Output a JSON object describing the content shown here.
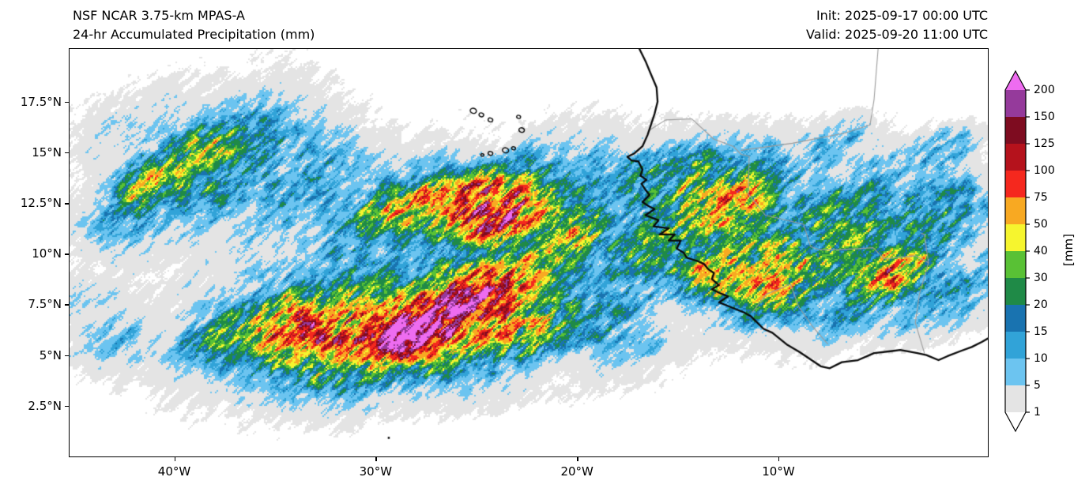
{
  "header": {
    "title_line1": "NSF NCAR 3.75-km MPAS-A",
    "title_line2": "24-hr Accumulated Precipitation (mm)",
    "init_label": "Init: 2025-09-17 00:00 UTC",
    "valid_label": "Valid: 2025-09-20 11:00 UTC"
  },
  "chart_data": {
    "type": "heatmap",
    "title": "24-hr Accumulated Precipitation (mm)",
    "model": "NSF NCAR 3.75-km MPAS-A",
    "init_time": "2025-09-17 00:00 UTC",
    "valid_time": "2025-09-20 11:00 UTC",
    "units": "[mm]",
    "grid": false,
    "extent": {
      "lon_min": -45.2,
      "lon_max": 0.4,
      "lat_min": 0.0,
      "lat_max": 20.1
    },
    "xticks": [
      {
        "lon": -40,
        "label": "40°W"
      },
      {
        "lon": -30,
        "label": "30°W"
      },
      {
        "lon": -20,
        "label": "20°W"
      },
      {
        "lon": -10,
        "label": "10°W"
      }
    ],
    "yticks": [
      {
        "lat": 17.5,
        "label": "17.5°N"
      },
      {
        "lat": 15,
        "label": "15°N"
      },
      {
        "lat": 12.5,
        "label": "12.5°N"
      },
      {
        "lat": 10,
        "label": "10°N"
      },
      {
        "lat": 7.5,
        "label": "7.5°N"
      },
      {
        "lat": 5,
        "label": "5°N"
      },
      {
        "lat": 2.5,
        "label": "2.5°N"
      }
    ],
    "colorbar": {
      "levels": [
        1,
        5,
        10,
        15,
        20,
        30,
        40,
        50,
        75,
        100,
        125,
        150,
        200
      ],
      "colors": [
        "#ffffff",
        "#e4e4e4",
        "#6cc4f0",
        "#31a3d8",
        "#1973b0",
        "#1f8a47",
        "#59c135",
        "#f6f52e",
        "#f8a922",
        "#f5281e",
        "#b5121c",
        "#7e0c20",
        "#953a9b",
        "#ee6cf0"
      ],
      "extend": "both",
      "unit_label": "[mm]"
    },
    "noise": {
      "streak_angle_deg": 42
    },
    "precip_systems": [
      {
        "lon": -37.5,
        "lat": 14.8,
        "rx": 6.0,
        "ry": 3.2,
        "rot": 35,
        "peak_mm": 6
      },
      {
        "lon": -39.5,
        "lat": 14.2,
        "rx": 3.5,
        "ry": 2.0,
        "rot": 35,
        "peak_mm": 22
      },
      {
        "lon": -35.5,
        "lat": 13.2,
        "rx": 3.0,
        "ry": 1.8,
        "rot": 35,
        "peak_mm": 18
      },
      {
        "lon": -41.5,
        "lat": 13.4,
        "rx": 1.6,
        "ry": 0.9,
        "rot": 35,
        "peak_mm": 80
      },
      {
        "lon": -38.3,
        "lat": 15.3,
        "rx": 2.0,
        "ry": 1.0,
        "rot": 35,
        "peak_mm": 45
      },
      {
        "lon": -36.0,
        "lat": 15.8,
        "rx": 2.2,
        "ry": 1.2,
        "rot": 35,
        "peak_mm": 14
      },
      {
        "lon": -43.0,
        "lat": 11.5,
        "rx": 2.2,
        "ry": 1.6,
        "rot": 25,
        "peak_mm": 8
      },
      {
        "lon": -33.0,
        "lat": 14.0,
        "rx": 3.0,
        "ry": 1.6,
        "rot": 30,
        "peak_mm": 10
      },
      {
        "lon": -30.0,
        "lat": 13.0,
        "rx": 3.5,
        "ry": 1.5,
        "rot": 25,
        "peak_mm": 12
      },
      {
        "lon": -26.3,
        "lat": 12.55,
        "rx": 3.2,
        "ry": 1.1,
        "rot": 12,
        "peak_mm": 150
      },
      {
        "lon": -23.2,
        "lat": 11.9,
        "rx": 2.6,
        "ry": 1.0,
        "rot": 20,
        "peak_mm": 130
      },
      {
        "lon": -25.0,
        "lat": 12.3,
        "rx": 5.0,
        "ry": 1.8,
        "rot": 15,
        "peak_mm": 40
      },
      {
        "lon": -21.0,
        "lat": 11.2,
        "rx": 2.0,
        "ry": 1.2,
        "rot": 25,
        "peak_mm": 55
      },
      {
        "lon": -28.8,
        "lat": 12.1,
        "rx": 1.6,
        "ry": 0.9,
        "rot": 15,
        "peak_mm": 60
      },
      {
        "lon": -20.0,
        "lat": 10.3,
        "rx": 2.2,
        "ry": 1.4,
        "rot": 25,
        "peak_mm": 35
      },
      {
        "lon": -23.0,
        "lat": 13.5,
        "rx": 3.0,
        "ry": 1.2,
        "rot": 20,
        "peak_mm": 12
      },
      {
        "lon": -29.0,
        "lat": 10.0,
        "rx": 11.0,
        "ry": 5.5,
        "rot": 8,
        "peak_mm": 3.2
      },
      {
        "lon": -38.0,
        "lat": 9.0,
        "rx": 5.0,
        "ry": 3.5,
        "rot": 15,
        "peak_mm": 2.2
      },
      {
        "lon": -29.5,
        "lat": 6.3,
        "rx": 5.5,
        "ry": 2.0,
        "rot": 8,
        "peak_mm": 90
      },
      {
        "lon": -28.2,
        "lat": 6.05,
        "rx": 1.6,
        "ry": 0.9,
        "rot": 10,
        "peak_mm": 260
      },
      {
        "lon": -31.5,
        "lat": 5.9,
        "rx": 2.2,
        "ry": 1.1,
        "rot": 10,
        "peak_mm": 150
      },
      {
        "lon": -26.0,
        "lat": 7.3,
        "rx": 2.6,
        "ry": 1.3,
        "rot": 25,
        "peak_mm": 130
      },
      {
        "lon": -24.0,
        "lat": 8.3,
        "rx": 2.2,
        "ry": 1.2,
        "rot": 30,
        "peak_mm": 90
      },
      {
        "lon": -33.8,
        "lat": 6.6,
        "rx": 2.2,
        "ry": 1.2,
        "rot": 20,
        "peak_mm": 110
      },
      {
        "lon": -36.6,
        "lat": 6.4,
        "rx": 1.8,
        "ry": 1.0,
        "rot": 25,
        "peak_mm": 70
      },
      {
        "lon": -29.0,
        "lat": 7.0,
        "rx": 7.5,
        "ry": 3.0,
        "rot": 12,
        "peak_mm": 28
      },
      {
        "lon": -22.5,
        "lat": 6.2,
        "rx": 2.5,
        "ry": 1.3,
        "rot": 15,
        "peak_mm": 45
      },
      {
        "lon": -19.5,
        "lat": 6.8,
        "rx": 2.2,
        "ry": 1.3,
        "rot": 20,
        "peak_mm": 18
      },
      {
        "lon": -17.0,
        "lat": 5.6,
        "rx": 2.0,
        "ry": 1.0,
        "rot": 15,
        "peak_mm": 12
      },
      {
        "lon": -29.5,
        "lat": 4.2,
        "rx": 6.0,
        "ry": 1.5,
        "rot": 5,
        "peak_mm": 4
      },
      {
        "lon": -24.5,
        "lat": 3.4,
        "rx": 4.0,
        "ry": 1.2,
        "rot": 5,
        "peak_mm": 3
      },
      {
        "lon": -14.2,
        "lat": 12.6,
        "rx": 2.8,
        "ry": 1.8,
        "rot": 35,
        "peak_mm": 60
      },
      {
        "lon": -12.3,
        "lat": 12.7,
        "rx": 1.6,
        "ry": 1.0,
        "rot": 35,
        "peak_mm": 110
      },
      {
        "lon": -15.5,
        "lat": 10.8,
        "rx": 2.2,
        "ry": 1.4,
        "rot": 30,
        "peak_mm": 30
      },
      {
        "lon": -13.3,
        "lat": 9.1,
        "rx": 1.6,
        "ry": 1.0,
        "rot": 25,
        "peak_mm": 120
      },
      {
        "lon": -11.5,
        "lat": 10.5,
        "rx": 2.5,
        "ry": 1.8,
        "rot": 30,
        "peak_mm": 35
      },
      {
        "lon": -16.5,
        "lat": 13.8,
        "rx": 2.0,
        "ry": 1.2,
        "rot": 30,
        "peak_mm": 20
      },
      {
        "lon": -9.9,
        "lat": 8.7,
        "rx": 2.2,
        "ry": 1.4,
        "rot": 25,
        "peak_mm": 95
      },
      {
        "lon": -8.0,
        "lat": 10.5,
        "rx": 4.5,
        "ry": 2.8,
        "rot": 20,
        "peak_mm": 22
      },
      {
        "lon": -4.8,
        "lat": 9.0,
        "rx": 1.6,
        "ry": 1.0,
        "rot": 20,
        "peak_mm": 90
      },
      {
        "lon": -5.5,
        "lat": 11.5,
        "rx": 3.5,
        "ry": 2.2,
        "rot": 25,
        "peak_mm": 18
      },
      {
        "lon": -2.5,
        "lat": 10.0,
        "rx": 2.8,
        "ry": 2.0,
        "rot": 20,
        "peak_mm": 25
      },
      {
        "lon": -1.0,
        "lat": 8.0,
        "rx": 2.0,
        "ry": 1.5,
        "rot": 20,
        "peak_mm": 15
      },
      {
        "lon": -7.2,
        "lat": 15.6,
        "rx": 1.7,
        "ry": 0.8,
        "rot": 30,
        "peak_mm": 26
      },
      {
        "lon": -3.0,
        "lat": 13.5,
        "rx": 2.5,
        "ry": 1.5,
        "rot": 25,
        "peak_mm": 8
      },
      {
        "lon": -10.5,
        "lat": 13.8,
        "rx": 2.5,
        "ry": 1.5,
        "rot": 30,
        "peak_mm": 14
      },
      {
        "lon": -6.5,
        "lat": 6.8,
        "rx": 2.5,
        "ry": 1.2,
        "rot": 15,
        "peak_mm": 10
      },
      {
        "lon": -3.5,
        "lat": 6.5,
        "rx": 2.0,
        "ry": 1.0,
        "rot": 15,
        "peak_mm": 12
      },
      {
        "lon": -1.2,
        "lat": 12.2,
        "rx": 2.2,
        "ry": 1.5,
        "rot": 25,
        "peak_mm": 20
      },
      {
        "lon": -16.8,
        "lat": 9.0,
        "rx": 1.8,
        "ry": 2.5,
        "rot": 10,
        "peak_mm": 10
      },
      {
        "lon": -6.5,
        "lat": 10.5,
        "rx": 7.0,
        "ry": 4.2,
        "rot": 15,
        "peak_mm": 3.5
      },
      {
        "lon": -12.5,
        "lat": 12.0,
        "rx": 4.0,
        "ry": 3.0,
        "rot": 30,
        "peak_mm": 5
      },
      {
        "lon": -42.5,
        "lat": 16.2,
        "rx": 3.0,
        "ry": 1.8,
        "rot": 30,
        "peak_mm": 7
      },
      {
        "lon": -18.0,
        "lat": 14.2,
        "rx": 3.5,
        "ry": 2.0,
        "rot": 25,
        "peak_mm": 3
      },
      {
        "lon": -21.5,
        "lat": 15.8,
        "rx": 3.0,
        "ry": 1.5,
        "rot": 30,
        "peak_mm": 2.5
      },
      {
        "lon": -1.5,
        "lat": 15.3,
        "rx": 1.5,
        "ry": 0.9,
        "rot": 25,
        "peak_mm": 12
      },
      {
        "lon": -20.0,
        "lat": 3.6,
        "rx": 4.5,
        "ry": 1.2,
        "rot": 8,
        "peak_mm": 2.5
      },
      {
        "lon": -33.0,
        "lat": 4.5,
        "rx": 3.5,
        "ry": 1.2,
        "rot": 10,
        "peak_mm": 2.5
      },
      {
        "lon": -42.5,
        "lat": 6.0,
        "rx": 2.5,
        "ry": 1.5,
        "rot": 20,
        "peak_mm": 12
      },
      {
        "lon": -44.5,
        "lat": 7.5,
        "rx": 1.5,
        "ry": 1.0,
        "rot": 20,
        "peak_mm": 8
      },
      {
        "lon": -39.0,
        "lat": 5.2,
        "rx": 2.0,
        "ry": 1.0,
        "rot": 15,
        "peak_mm": 15
      }
    ],
    "coastline": [
      [
        -16.9,
        20.1
      ],
      [
        -16.6,
        19.5
      ],
      [
        -16.35,
        18.9
      ],
      [
        -16.05,
        18.2
      ],
      [
        -16.0,
        17.5
      ],
      [
        -16.15,
        16.9
      ],
      [
        -16.35,
        16.3
      ],
      [
        -16.5,
        15.85
      ],
      [
        -16.75,
        15.3
      ],
      [
        -17.15,
        14.95
      ],
      [
        -17.5,
        14.78
      ],
      [
        -17.3,
        14.6
      ],
      [
        -16.95,
        14.55
      ],
      [
        -16.75,
        14.15
      ],
      [
        -16.85,
        13.85
      ],
      [
        -16.55,
        13.65
      ],
      [
        -16.8,
        13.45
      ],
      [
        -16.6,
        13.15
      ],
      [
        -16.4,
        12.9
      ],
      [
        -16.75,
        12.55
      ],
      [
        -16.45,
        12.35
      ],
      [
        -16.15,
        12.2
      ],
      [
        -16.6,
        11.9
      ],
      [
        -15.95,
        11.65
      ],
      [
        -16.2,
        11.35
      ],
      [
        -15.45,
        11.25
      ],
      [
        -15.9,
        10.95
      ],
      [
        -15.15,
        10.95
      ],
      [
        -15.45,
        10.65
      ],
      [
        -14.85,
        10.65
      ],
      [
        -15.05,
        10.25
      ],
      [
        -14.7,
        10.05
      ],
      [
        -14.55,
        9.8
      ],
      [
        -14.05,
        9.65
      ],
      [
        -13.7,
        9.5
      ],
      [
        -13.5,
        9.25
      ],
      [
        -13.2,
        9.05
      ],
      [
        -13.3,
        8.75
      ],
      [
        -12.95,
        8.45
      ],
      [
        -13.3,
        8.25
      ],
      [
        -12.9,
        8.05
      ],
      [
        -12.5,
        7.9
      ],
      [
        -12.95,
        7.6
      ],
      [
        -12.45,
        7.4
      ],
      [
        -11.7,
        7.1
      ],
      [
        -11.35,
        6.9
      ],
      [
        -10.75,
        6.3
      ],
      [
        -10.3,
        6.1
      ],
      [
        -9.55,
        5.5
      ],
      [
        -8.95,
        5.15
      ],
      [
        -7.9,
        4.45
      ],
      [
        -7.45,
        4.35
      ],
      [
        -6.85,
        4.65
      ],
      [
        -6.05,
        4.75
      ],
      [
        -5.25,
        5.1
      ],
      [
        -4.35,
        5.2
      ],
      [
        -3.95,
        5.25
      ],
      [
        -3.1,
        5.1
      ],
      [
        -2.65,
        5.0
      ],
      [
        -2.05,
        4.75
      ],
      [
        -1.6,
        4.95
      ],
      [
        -0.95,
        5.2
      ],
      [
        -0.4,
        5.4
      ],
      [
        0.1,
        5.65
      ],
      [
        0.45,
        5.85
      ]
    ],
    "borders": [
      [
        [
          -16.4,
          16.1
        ],
        [
          -15.6,
          16.6
        ],
        [
          -14.3,
          16.65
        ],
        [
          -13.2,
          15.65
        ],
        [
          -12.25,
          15.3
        ],
        [
          -11.85,
          14.9
        ],
        [
          -11.45,
          14.8
        ]
      ],
      [
        [
          -11.85,
          15.1
        ],
        [
          -9.3,
          15.45
        ],
        [
          -6.7,
          15.95
        ],
        [
          -5.45,
          16.35
        ],
        [
          -5.25,
          17.6
        ],
        [
          -5.05,
          20.1
        ]
      ],
      [
        [
          -11.45,
          14.8
        ],
        [
          -11.5,
          12.95
        ],
        [
          -11.05,
          12.4
        ],
        [
          -10.65,
          11.9
        ],
        [
          -8.75,
          11.45
        ],
        [
          -8.4,
          10.35
        ],
        [
          -7.95,
          10.2
        ]
      ],
      [
        [
          -2.75,
          5.1
        ],
        [
          -3.2,
          6.6
        ],
        [
          -3.0,
          8.0
        ],
        [
          -2.55,
          9.55
        ],
        [
          -2.75,
          10.95
        ],
        [
          -2.9,
          11.0
        ]
      ],
      [
        [
          -7.95,
          10.2
        ],
        [
          -6.95,
          10.2
        ],
        [
          -6.0,
          10.25
        ],
        [
          -5.3,
          10.3
        ],
        [
          -4.75,
          9.75
        ],
        [
          -3.2,
          9.9
        ],
        [
          -2.55,
          9.55
        ]
      ],
      [
        [
          -11.3,
          7.1
        ],
        [
          -10.6,
          8.0
        ],
        [
          -9.4,
          8.5
        ],
        [
          -9.0,
          7.4
        ],
        [
          -8.3,
          6.4
        ],
        [
          -7.55,
          5.55
        ]
      ]
    ],
    "islands": [
      [
        -25.15,
        17.05,
        4
      ],
      [
        -24.75,
        16.85,
        3
      ],
      [
        -24.3,
        16.6,
        3
      ],
      [
        -22.9,
        16.75,
        2.5
      ],
      [
        -22.75,
        16.1,
        3.5
      ],
      [
        -23.15,
        15.2,
        2.5
      ],
      [
        -23.55,
        15.1,
        4
      ],
      [
        -24.3,
        14.95,
        3
      ],
      [
        -24.7,
        14.87,
        2
      ]
    ],
    "islets": [
      [
        -29.35,
        0.92
      ]
    ]
  }
}
